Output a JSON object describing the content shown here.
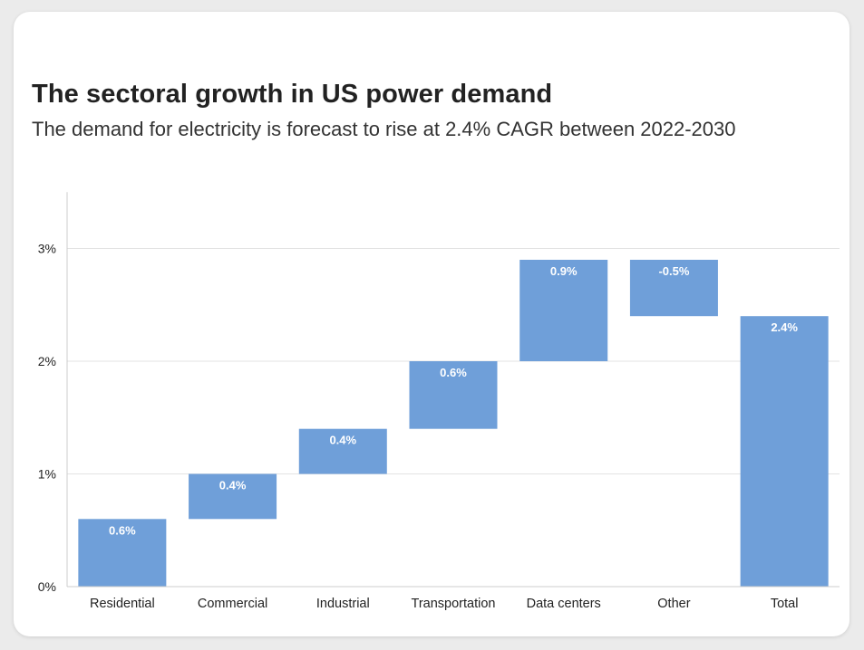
{
  "chart_data": {
    "type": "waterfall",
    "title": "The sectoral growth in US power demand",
    "subtitle": "The demand for electricity is forecast to rise at 2.4% CAGR between 2022-2030",
    "categories": [
      "Residential",
      "Commercial",
      "Industrial",
      "Transportation",
      "Data centers",
      "Other",
      "Total"
    ],
    "values": [
      0.6,
      0.4,
      0.4,
      0.6,
      0.9,
      -0.5,
      2.4
    ],
    "value_labels": [
      "0.6%",
      "0.4%",
      "0.4%",
      "0.6%",
      "0.9%",
      "-0.5%",
      "2.4%"
    ],
    "bar_ranges": [
      [
        0,
        0.6
      ],
      [
        0.6,
        1.0
      ],
      [
        1.0,
        1.4
      ],
      [
        1.4,
        2.0
      ],
      [
        2.0,
        2.9
      ],
      [
        2.4,
        2.9
      ],
      [
        0,
        2.4
      ]
    ],
    "total_index": 6,
    "y_ticks": [
      0,
      1,
      2,
      3
    ],
    "y_tick_labels": [
      "0%",
      "1%",
      "2%",
      "3%"
    ],
    "ylim": [
      0,
      3.5
    ],
    "xlabel": "",
    "ylabel": "",
    "grid": true,
    "bar_color": "#6f9fd9",
    "grid_color": "#e3e3e3",
    "axis_color": "#cccccc"
  }
}
